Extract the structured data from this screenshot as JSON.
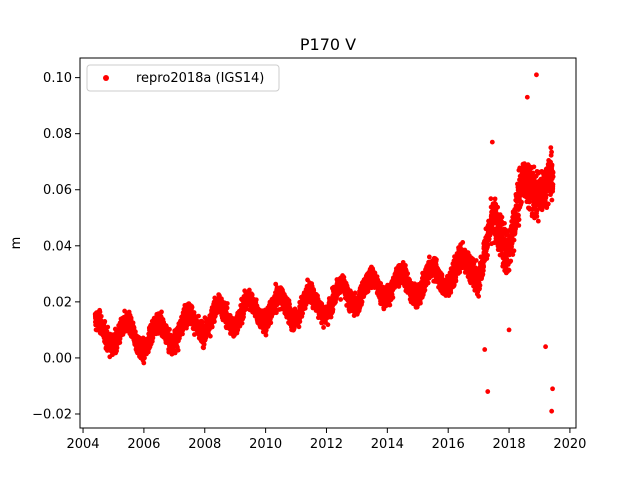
{
  "chart_data": {
    "type": "scatter",
    "title": "P170 V",
    "xlabel": "",
    "ylabel": "m",
    "xlim": [
      2003.9,
      2020.2
    ],
    "ylim": [
      -0.025,
      0.107
    ],
    "x_ticks": [
      2004,
      2006,
      2008,
      2010,
      2012,
      2014,
      2016,
      2018,
      2020
    ],
    "x_tick_labels": [
      "2004",
      "2006",
      "2008",
      "2010",
      "2012",
      "2014",
      "2016",
      "2018",
      "2020"
    ],
    "y_ticks": [
      -0.02,
      0.0,
      0.02,
      0.04,
      0.06,
      0.08,
      0.1
    ],
    "y_tick_labels": [
      "−0.02",
      "0.00",
      "0.02",
      "0.04",
      "0.06",
      "0.08",
      "0.10"
    ],
    "grid": false,
    "legend_position": "top-left",
    "series": [
      {
        "name": "repro2018a (IGS14)",
        "color": "#ff0000",
        "marker": "circle",
        "trend_x": [
          2004.4,
          2005.0,
          2006.0,
          2007.0,
          2008.0,
          2009.0,
          2010.0,
          2011.0,
          2012.0,
          2013.0,
          2014.0,
          2015.0,
          2016.0,
          2016.5,
          2017.0,
          2017.5,
          2018.0,
          2018.5,
          2019.0,
          2019.45
        ],
        "trend_y": [
          0.009,
          0.009,
          0.007,
          0.01,
          0.013,
          0.016,
          0.017,
          0.018,
          0.02,
          0.023,
          0.026,
          0.026,
          0.03,
          0.032,
          0.033,
          0.045,
          0.043,
          0.06,
          0.063,
          0.06
        ],
        "outliers": [
          {
            "x": 2017.3,
            "y": -0.012
          },
          {
            "x": 2017.45,
            "y": 0.077
          },
          {
            "x": 2019.4,
            "y": -0.019
          },
          {
            "x": 2019.43,
            "y": -0.011
          },
          {
            "x": 2018.9,
            "y": 0.101
          },
          {
            "x": 2018.6,
            "y": 0.093
          },
          {
            "x": 2017.2,
            "y": 0.003
          },
          {
            "x": 2018.0,
            "y": 0.01
          },
          {
            "x": 2019.2,
            "y": 0.004
          }
        ]
      }
    ]
  }
}
